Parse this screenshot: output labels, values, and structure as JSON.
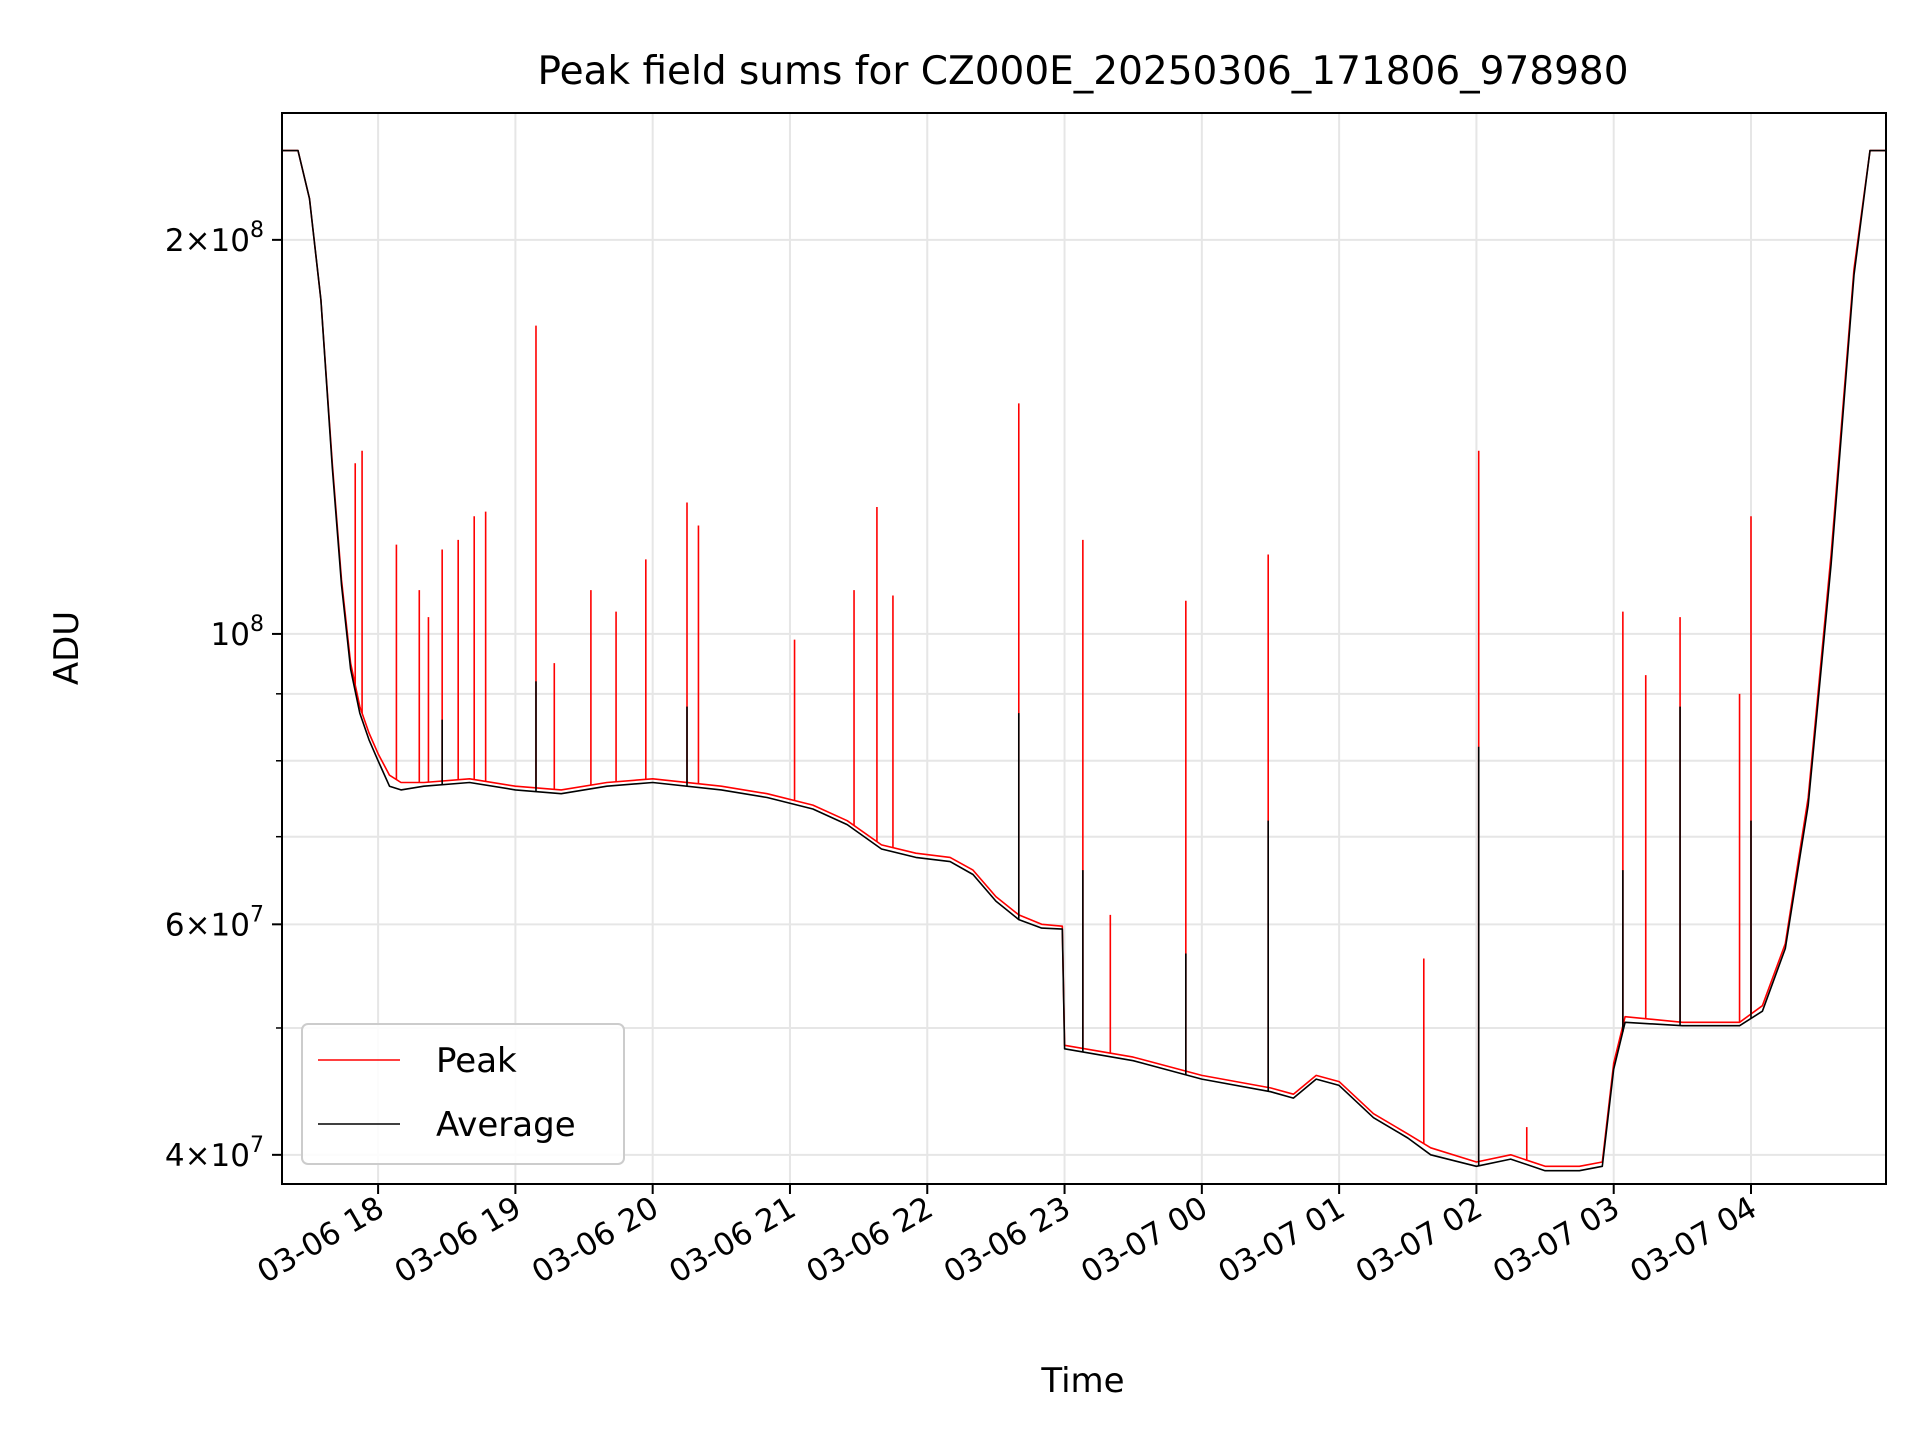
{
  "chart_data": {
    "type": "line",
    "title": "Peak field sums for CZ000E_20250306_171806_978980",
    "xlabel": "Time",
    "ylabel": "ADU",
    "y_scale": "log",
    "ylim": [
      38000000,
      250000000
    ],
    "xlim": [
      "2025-03-06 17:18",
      "2025-03-07 04:59"
    ],
    "grid": true,
    "legend": {
      "placement": "lower-left"
    },
    "x_ticks": [
      {
        "t": "2025-03-06 18:00",
        "label": "03-06 18"
      },
      {
        "t": "2025-03-06 19:00",
        "label": "03-06 19"
      },
      {
        "t": "2025-03-06 20:00",
        "label": "03-06 20"
      },
      {
        "t": "2025-03-06 21:00",
        "label": "03-06 21"
      },
      {
        "t": "2025-03-06 22:00",
        "label": "03-06 22"
      },
      {
        "t": "2025-03-06 23:00",
        "label": "03-06 23"
      },
      {
        "t": "2025-03-07 00:00",
        "label": "03-07 00"
      },
      {
        "t": "2025-03-07 01:00",
        "label": "03-07 01"
      },
      {
        "t": "2025-03-07 02:00",
        "label": "03-07 02"
      },
      {
        "t": "2025-03-07 03:00",
        "label": "03-07 03"
      },
      {
        "t": "2025-03-07 04:00",
        "label": "03-07 04"
      }
    ],
    "y_ticks": [
      {
        "value": 40000000,
        "base": "4",
        "exp": "7"
      },
      {
        "value": 60000000,
        "base": "6",
        "exp": "7"
      },
      {
        "value": 100000000,
        "base": "",
        "exp": "8"
      },
      {
        "value": 200000000,
        "base": "2",
        "exp": "8"
      }
    ],
    "y_minor_ticks": [
      50000000,
      70000000,
      80000000,
      90000000
    ],
    "series": [
      {
        "name": "Peak",
        "color": "#ff0000",
        "points": [
          [
            "2025-03-06 17:18",
            234000000
          ],
          [
            "2025-03-06 17:25",
            234000000
          ],
          [
            "2025-03-06 17:30",
            215000000
          ],
          [
            "2025-03-06 17:35",
            180000000
          ],
          [
            "2025-03-06 17:40",
            135000000
          ],
          [
            "2025-03-06 17:44",
            110000000
          ],
          [
            "2025-03-06 17:48",
            95000000
          ],
          [
            "2025-03-06 17:52",
            88000000
          ],
          [
            "2025-03-06 17:56",
            84000000
          ],
          [
            "2025-03-06 18:00",
            81000000
          ],
          [
            "2025-03-06 18:05",
            78000000
          ],
          [
            "2025-03-06 18:10",
            77000000
          ],
          [
            "2025-03-06 18:20",
            77000000
          ],
          [
            "2025-03-06 18:40",
            77500000
          ],
          [
            "2025-03-06 19:00",
            76500000
          ],
          [
            "2025-03-06 19:20",
            76000000
          ],
          [
            "2025-03-06 19:40",
            77000000
          ],
          [
            "2025-03-06 20:00",
            77500000
          ],
          [
            "2025-03-06 20:30",
            76500000
          ],
          [
            "2025-03-06 20:50",
            75500000
          ],
          [
            "2025-03-06 21:10",
            74000000
          ],
          [
            "2025-03-06 21:25",
            72000000
          ],
          [
            "2025-03-06 21:40",
            69000000
          ],
          [
            "2025-03-06 21:55",
            68000000
          ],
          [
            "2025-03-06 22:10",
            67500000
          ],
          [
            "2025-03-06 22:20",
            66000000
          ],
          [
            "2025-03-06 22:30",
            63000000
          ],
          [
            "2025-03-06 22:40",
            61000000
          ],
          [
            "2025-03-06 22:50",
            60000000
          ],
          [
            "2025-03-06 22:59",
            59800000
          ],
          [
            "2025-03-06 23:00",
            48500000
          ],
          [
            "2025-03-06 23:30",
            47500000
          ],
          [
            "2025-03-07 00:00",
            46000000
          ],
          [
            "2025-03-07 00:30",
            45000000
          ],
          [
            "2025-03-07 00:40",
            44500000
          ],
          [
            "2025-03-07 00:50",
            46000000
          ],
          [
            "2025-03-07 01:00",
            45500000
          ],
          [
            "2025-03-07 01:15",
            43000000
          ],
          [
            "2025-03-07 01:30",
            41500000
          ],
          [
            "2025-03-07 01:40",
            40500000
          ],
          [
            "2025-03-07 02:00",
            39500000
          ],
          [
            "2025-03-07 02:15",
            40000000
          ],
          [
            "2025-03-07 02:30",
            39200000
          ],
          [
            "2025-03-07 02:45",
            39200000
          ],
          [
            "2025-03-07 02:55",
            39500000
          ],
          [
            "2025-03-07 03:00",
            47000000
          ],
          [
            "2025-03-07 03:05",
            51000000
          ],
          [
            "2025-03-07 03:30",
            50500000
          ],
          [
            "2025-03-07 03:55",
            50500000
          ],
          [
            "2025-03-07 04:05",
            52000000
          ],
          [
            "2025-03-07 04:15",
            58000000
          ],
          [
            "2025-03-07 04:25",
            75000000
          ],
          [
            "2025-03-07 04:35",
            115000000
          ],
          [
            "2025-03-07 04:45",
            190000000
          ],
          [
            "2025-03-07 04:52",
            234000000
          ],
          [
            "2025-03-07 04:59",
            234000000
          ]
        ],
        "spikes": [
          [
            "2025-03-06 17:50",
            135000000
          ],
          [
            "2025-03-06 17:53",
            138000000
          ],
          [
            "2025-03-06 18:08",
            117000000
          ],
          [
            "2025-03-06 18:18",
            108000000
          ],
          [
            "2025-03-06 18:22",
            103000000
          ],
          [
            "2025-03-06 18:28",
            116000000
          ],
          [
            "2025-03-06 18:35",
            118000000
          ],
          [
            "2025-03-06 18:42",
            123000000
          ],
          [
            "2025-03-06 18:47",
            124000000
          ],
          [
            "2025-03-06 19:09",
            172000000
          ],
          [
            "2025-03-06 19:17",
            95000000
          ],
          [
            "2025-03-06 19:33",
            108000000
          ],
          [
            "2025-03-06 19:44",
            104000000
          ],
          [
            "2025-03-06 19:57",
            114000000
          ],
          [
            "2025-03-06 20:15",
            126000000
          ],
          [
            "2025-03-06 20:20",
            121000000
          ],
          [
            "2025-03-06 21:02",
            99000000
          ],
          [
            "2025-03-06 21:28",
            108000000
          ],
          [
            "2025-03-06 21:38",
            125000000
          ],
          [
            "2025-03-06 21:45",
            107000000
          ],
          [
            "2025-03-06 22:40",
            150000000
          ],
          [
            "2025-03-06 23:08",
            118000000
          ],
          [
            "2025-03-06 23:20",
            61000000
          ],
          [
            "2025-03-06 23:53",
            106000000
          ],
          [
            "2025-03-07 00:29",
            115000000
          ],
          [
            "2025-03-07 01:37",
            56500000
          ],
          [
            "2025-03-07 02:01",
            138000000
          ],
          [
            "2025-03-07 02:22",
            42000000
          ],
          [
            "2025-03-07 03:04",
            104000000
          ],
          [
            "2025-03-07 03:14",
            93000000
          ],
          [
            "2025-03-07 03:29",
            103000000
          ],
          [
            "2025-03-07 03:55",
            90000000
          ],
          [
            "2025-03-07 04:00",
            123000000
          ]
        ]
      },
      {
        "name": "Average",
        "color": "#000000",
        "points": [
          [
            "2025-03-06 17:18",
            234000000
          ],
          [
            "2025-03-06 17:25",
            234000000
          ],
          [
            "2025-03-06 17:30",
            215000000
          ],
          [
            "2025-03-06 17:35",
            180000000
          ],
          [
            "2025-03-06 17:40",
            134000000
          ],
          [
            "2025-03-06 17:44",
            109000000
          ],
          [
            "2025-03-06 17:48",
            94000000
          ],
          [
            "2025-03-06 17:52",
            87000000
          ],
          [
            "2025-03-06 17:56",
            83000000
          ],
          [
            "2025-03-06 18:00",
            80000000
          ],
          [
            "2025-03-06 18:05",
            76500000
          ],
          [
            "2025-03-06 18:10",
            76000000
          ],
          [
            "2025-03-06 18:20",
            76500000
          ],
          [
            "2025-03-06 18:40",
            77000000
          ],
          [
            "2025-03-06 19:00",
            76000000
          ],
          [
            "2025-03-06 19:20",
            75500000
          ],
          [
            "2025-03-06 19:40",
            76500000
          ],
          [
            "2025-03-06 20:00",
            77000000
          ],
          [
            "2025-03-06 20:30",
            76000000
          ],
          [
            "2025-03-06 20:50",
            75000000
          ],
          [
            "2025-03-06 21:10",
            73500000
          ],
          [
            "2025-03-06 21:25",
            71500000
          ],
          [
            "2025-03-06 21:40",
            68500000
          ],
          [
            "2025-03-06 21:55",
            67500000
          ],
          [
            "2025-03-06 22:10",
            67000000
          ],
          [
            "2025-03-06 22:20",
            65500000
          ],
          [
            "2025-03-06 22:30",
            62500000
          ],
          [
            "2025-03-06 22:40",
            60500000
          ],
          [
            "2025-03-06 22:50",
            59600000
          ],
          [
            "2025-03-06 22:59",
            59500000
          ],
          [
            "2025-03-06 23:00",
            48200000
          ],
          [
            "2025-03-06 23:30",
            47200000
          ],
          [
            "2025-03-07 00:00",
            45700000
          ],
          [
            "2025-03-07 00:30",
            44700000
          ],
          [
            "2025-03-07 00:40",
            44200000
          ],
          [
            "2025-03-07 00:50",
            45700000
          ],
          [
            "2025-03-07 01:00",
            45200000
          ],
          [
            "2025-03-07 01:15",
            42700000
          ],
          [
            "2025-03-07 01:30",
            41200000
          ],
          [
            "2025-03-07 01:40",
            40000000
          ],
          [
            "2025-03-07 02:00",
            39200000
          ],
          [
            "2025-03-07 02:15",
            39700000
          ],
          [
            "2025-03-07 02:30",
            38900000
          ],
          [
            "2025-03-07 02:45",
            38900000
          ],
          [
            "2025-03-07 02:55",
            39200000
          ],
          [
            "2025-03-07 03:00",
            46500000
          ],
          [
            "2025-03-07 03:05",
            50500000
          ],
          [
            "2025-03-07 03:30",
            50200000
          ],
          [
            "2025-03-07 03:55",
            50200000
          ],
          [
            "2025-03-07 04:05",
            51500000
          ],
          [
            "2025-03-07 04:15",
            57500000
          ],
          [
            "2025-03-07 04:25",
            74000000
          ],
          [
            "2025-03-07 04:35",
            113000000
          ],
          [
            "2025-03-07 04:45",
            188000000
          ],
          [
            "2025-03-07 04:52",
            234000000
          ],
          [
            "2025-03-07 04:59",
            234000000
          ]
        ],
        "spikes": [
          [
            "2025-03-06 18:28",
            86000000
          ],
          [
            "2025-03-06 19:09",
            92000000
          ],
          [
            "2025-03-06 20:15",
            88000000
          ],
          [
            "2025-03-06 22:40",
            87000000
          ],
          [
            "2025-03-06 23:08",
            66000000
          ],
          [
            "2025-03-06 23:53",
            57000000
          ],
          [
            "2025-03-07 00:29",
            72000000
          ],
          [
            "2025-03-07 02:01",
            82000000
          ],
          [
            "2025-03-07 03:04",
            66000000
          ],
          [
            "2025-03-07 03:29",
            88000000
          ],
          [
            "2025-03-07 04:00",
            72000000
          ]
        ]
      }
    ]
  }
}
